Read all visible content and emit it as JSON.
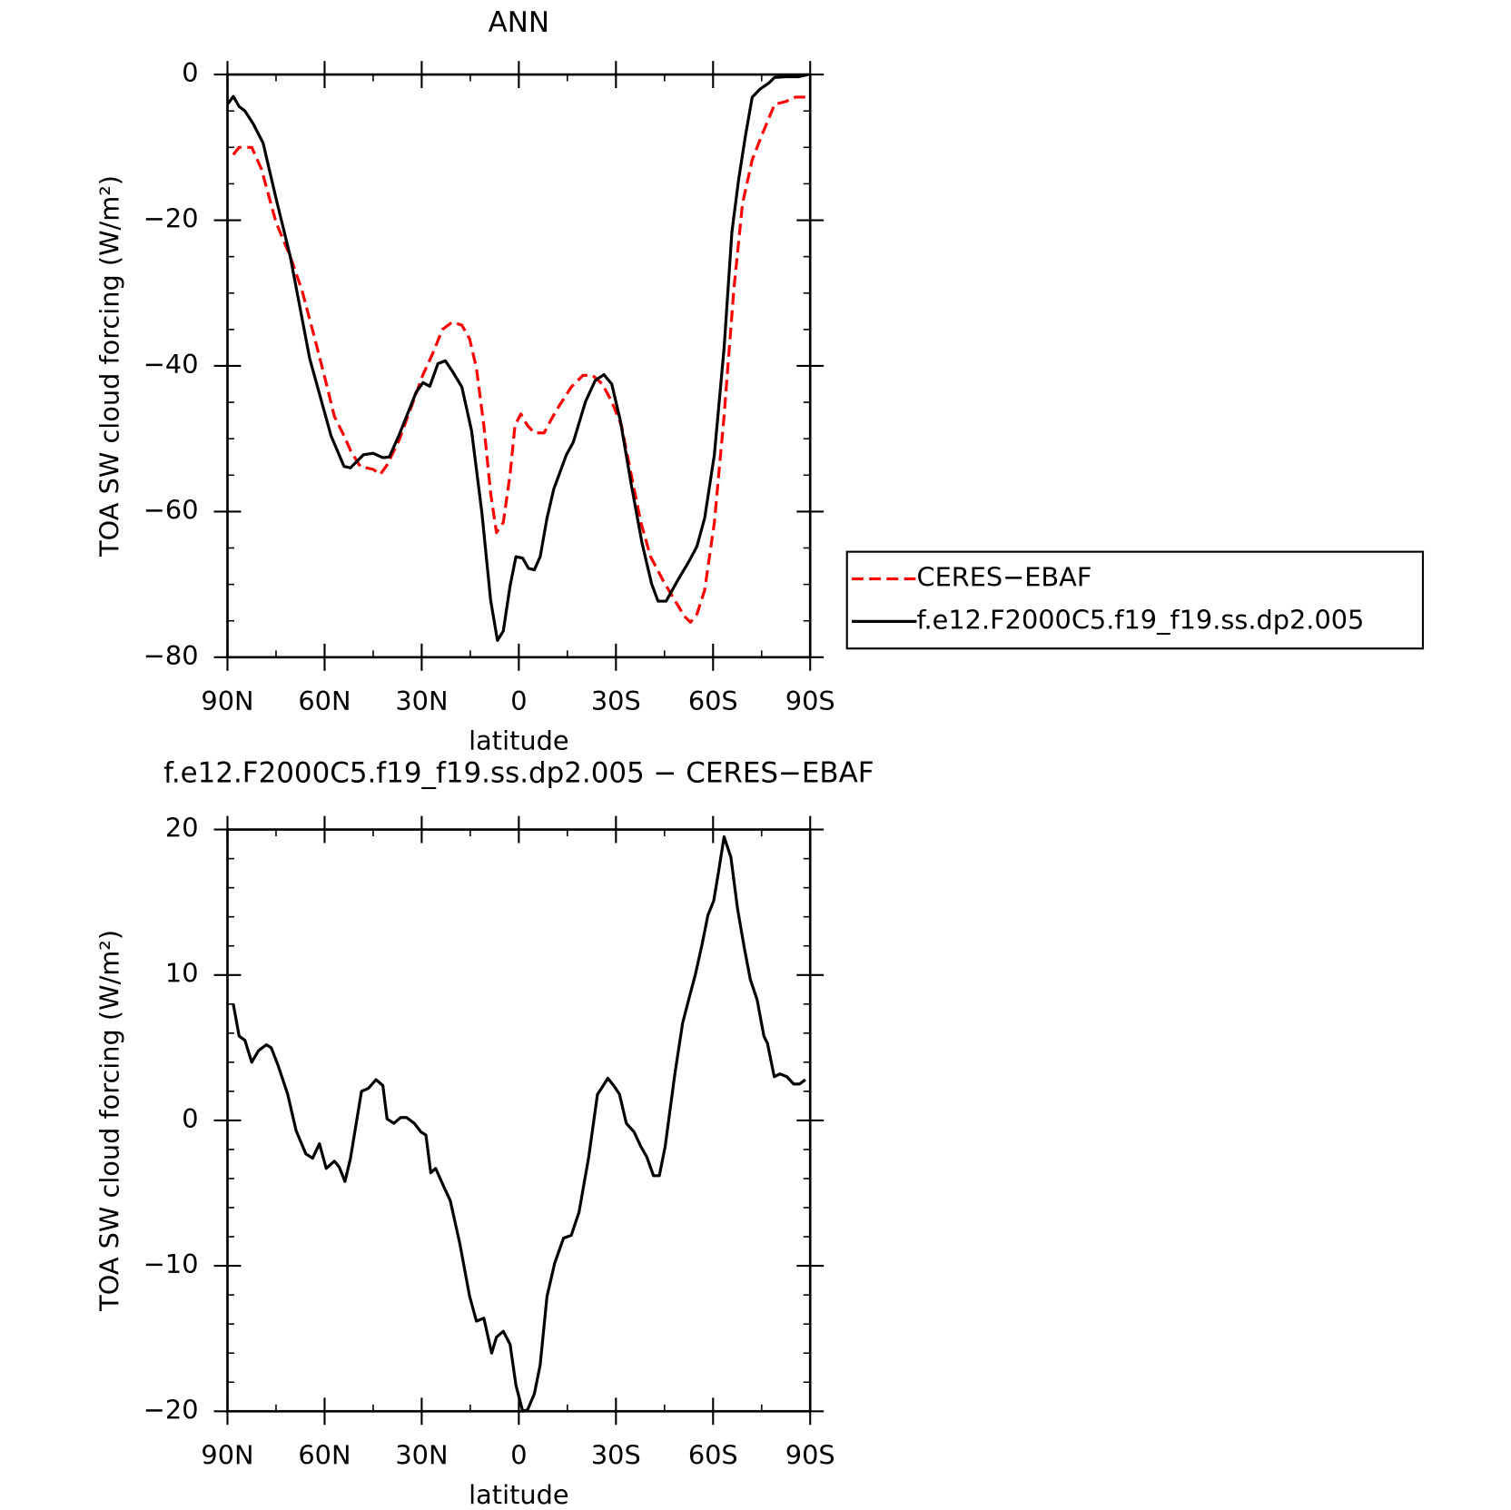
{
  "chart_data": [
    {
      "type": "line",
      "title": "ANN",
      "xlabel": "latitude",
      "ylabel": "TOA SW cloud forcing (W/m²)",
      "xlim": [
        90,
        -90
      ],
      "xticks": [
        {
          "value": 90,
          "label": "90N"
        },
        {
          "value": 60,
          "label": "60N"
        },
        {
          "value": 30,
          "label": "30N"
        },
        0,
        {
          "value": -30,
          "label": "30S"
        },
        {
          "value": -60,
          "label": "60S"
        },
        {
          "value": -90,
          "label": "90S"
        }
      ],
      "xminorticks": [
        75,
        45,
        15,
        -15,
        -45,
        -75
      ],
      "ylim": [
        -80,
        0
      ],
      "yticks": [
        0,
        {
          "value": -20,
          "label": "−20"
        },
        {
          "value": -40,
          "label": "−40"
        },
        {
          "value": -60,
          "label": "−60"
        },
        {
          "value": -80,
          "label": "−80"
        }
      ],
      "yminorticks": [
        -5,
        -10,
        -15,
        -25,
        -30,
        -35,
        -45,
        -50,
        -55,
        -65,
        -70,
        -75
      ],
      "legend": "right",
      "series": [
        {
          "name": "CERES−EBAF",
          "color": "#ff0000",
          "dash": true,
          "x": [
            88.2,
            86.4,
            82.5,
            79.5,
            75,
            70.6,
            67,
            63,
            59.2,
            57,
            54,
            52,
            49,
            45,
            42.8,
            40.7,
            37,
            33.2,
            29.6,
            26.6,
            23.6,
            20.6,
            17.6,
            15.2,
            13.1,
            10.8,
            8.7,
            6.9,
            4.8,
            2.7,
            1.2,
            -0.6,
            -2.7,
            -4.8,
            -7.8,
            -10.2,
            -12.3,
            -16.2,
            -19.8,
            -22.8,
            -25.8,
            -28.7,
            -31.7,
            -34.7,
            -37.7,
            -40.7,
            -44.6,
            -48.2,
            -51.2,
            -53,
            -55,
            -57.4,
            -60.4,
            -63.4,
            -66.4,
            -69.1,
            -72.1,
            -75,
            -79,
            -82.5,
            -85.5,
            -88.5
          ],
          "values": [
            -11,
            -10,
            -10,
            -13,
            -20.3,
            -25,
            -29.6,
            -36.3,
            -42.9,
            -46.9,
            -49.6,
            -51.6,
            -53.8,
            -54.2,
            -54.9,
            -53.6,
            -50.2,
            -45.6,
            -41.2,
            -38.3,
            -35,
            -34,
            -34.4,
            -36.3,
            -40.3,
            -48.2,
            -57.5,
            -62.9,
            -61.5,
            -54.9,
            -48.2,
            -46.6,
            -48.2,
            -49.2,
            -49.2,
            -47.2,
            -45.6,
            -42.9,
            -41.3,
            -41.3,
            -42.5,
            -44.9,
            -48.2,
            -54.9,
            -61.5,
            -66.2,
            -69.5,
            -72.2,
            -74.4,
            -75.2,
            -74.1,
            -70.8,
            -61.5,
            -46.9,
            -29.6,
            -17.7,
            -11.7,
            -8.4,
            -4.1,
            -3.7,
            -3.1,
            -3.1
          ]
        },
        {
          "name": "f.e12.F2000C5.f19_f19.ss.dp2.005",
          "color": "#000000",
          "dash": false,
          "x": [
            90,
            88.2,
            86.4,
            84.6,
            82,
            79,
            75,
            70.6,
            64.6,
            58,
            54,
            52,
            48,
            45,
            42,
            40,
            37,
            31.7,
            29.6,
            27.5,
            25,
            22.7,
            20.3,
            17.6,
            14.6,
            11.4,
            8.7,
            6.6,
            4.8,
            2.7,
            0.9,
            -1.2,
            -3,
            -4.8,
            -6.6,
            -8.7,
            -10.8,
            -14.7,
            -16.8,
            -20.6,
            -23.6,
            -26.3,
            -28.7,
            -31.4,
            -34.7,
            -38,
            -41,
            -43,
            -45.5,
            -49,
            -52.6,
            -55,
            -57.4,
            -60.4,
            -63.4,
            -65.8,
            -67.9,
            -70,
            -72.1,
            -74.5,
            -77.4,
            -79,
            -82.5,
            -86.4,
            -89.4
          ],
          "values": [
            -4.1,
            -3,
            -4.4,
            -5,
            -6.8,
            -9.4,
            -17,
            -25,
            -39,
            -49.6,
            -53.8,
            -54,
            -52.2,
            -52,
            -52.6,
            -52.5,
            -49.5,
            -43.6,
            -42.3,
            -42.8,
            -39.7,
            -39.3,
            -40.9,
            -42.9,
            -48.9,
            -60.2,
            -72.2,
            -77.7,
            -76.4,
            -70.2,
            -66.2,
            -66.4,
            -67.8,
            -68,
            -66.2,
            -60.9,
            -56.9,
            -52.2,
            -50.5,
            -44.9,
            -42,
            -41.2,
            -42.5,
            -47.6,
            -56.2,
            -64.2,
            -69.9,
            -72.3,
            -72.3,
            -69.5,
            -66.8,
            -64.8,
            -60.9,
            -52.2,
            -37.6,
            -21.7,
            -14.4,
            -8.4,
            -3.1,
            -2,
            -1.1,
            -0.4,
            -0.3,
            -0.3,
            0
          ]
        }
      ]
    },
    {
      "type": "line",
      "title": "f.e12.F2000C5.f19_f19.ss.dp2.005 − CERES−EBAF",
      "xlabel": "latitude",
      "ylabel": "TOA SW cloud forcing (W/m²)",
      "xlim": [
        90,
        -90
      ],
      "xticks": [
        {
          "value": 90,
          "label": "90N"
        },
        {
          "value": 60,
          "label": "60N"
        },
        {
          "value": 30,
          "label": "30N"
        },
        0,
        {
          "value": -30,
          "label": "30S"
        },
        {
          "value": -60,
          "label": "60S"
        },
        {
          "value": -90,
          "label": "90S"
        }
      ],
      "xminorticks": [
        75,
        45,
        15,
        -15,
        -45,
        -75
      ],
      "ylim": [
        -20,
        20
      ],
      "yticks": [
        20,
        10,
        0,
        {
          "value": -10,
          "label": "−10"
        },
        {
          "value": -20,
          "label": "−20"
        }
      ],
      "yminorticks": [
        18,
        16,
        14,
        12,
        8,
        6,
        4,
        2,
        -2,
        -4,
        -6,
        -8,
        -12,
        -14,
        -16,
        -18
      ],
      "series": [
        {
          "color": "#000000",
          "dash": false,
          "x": [
            88.2,
            86.4,
            84.6,
            82.5,
            80.4,
            78,
            76.5,
            74.4,
            71.4,
            68.8,
            65.8,
            63.7,
            61.6,
            59.5,
            57,
            55.5,
            53.7,
            52,
            48.6,
            46.5,
            44.1,
            42,
            40.7,
            38.6,
            36.5,
            34.7,
            32.3,
            30.2,
            28.7,
            27.2,
            25.7,
            23.3,
            21.2,
            18.2,
            15.2,
            13.1,
            10.8,
            8.4,
            6.9,
            4.8,
            2.7,
            0.9,
            -1.2,
            -2.7,
            -4.8,
            -6.6,
            -8.7,
            -11.1,
            -13.8,
            -16.2,
            -18.6,
            -21.6,
            -24.3,
            -25.8,
            -27.5,
            -29.3,
            -31.1,
            -33.2,
            -35.6,
            -37.7,
            -39.5,
            -41.6,
            -43.4,
            -45.2,
            -48.2,
            -50.6,
            -52.7,
            -54.5,
            -56.6,
            -58.4,
            -60.2,
            -61.7,
            -63.4,
            -65.5,
            -67.6,
            -69.7,
            -71.5,
            -73.6,
            -75.7,
            -76.8,
            -78.9,
            -80.7,
            -82.8,
            -84.9,
            -86.7,
            -88.5
          ],
          "values": [
            8.0,
            5.8,
            5.5,
            4.0,
            4.8,
            5.2,
            5.0,
            3.8,
            1.8,
            -0.7,
            -2.3,
            -2.6,
            -1.6,
            -3.3,
            -2.8,
            -3.2,
            -4.2,
            -2.6,
            2.0,
            2.2,
            2.8,
            2.4,
            0.1,
            -0.2,
            0.2,
            0.2,
            -0.2,
            -0.8,
            -1.0,
            -3.6,
            -3.3,
            -4.5,
            -5.5,
            -8.5,
            -12.1,
            -13.8,
            -13.6,
            -16.0,
            -14.9,
            -14.5,
            -15.4,
            -18.2,
            -20,
            -19.9,
            -18.8,
            -16.8,
            -12.1,
            -9.8,
            -8.1,
            -7.9,
            -6.3,
            -2.5,
            1.8,
            2.3,
            2.9,
            2.4,
            1.8,
            -0.2,
            -0.8,
            -1.8,
            -2.5,
            -3.8,
            -3.8,
            -1.8,
            3.2,
            6.7,
            8.5,
            10.0,
            12.1,
            14.1,
            15.1,
            17.1,
            19.5,
            18.1,
            14.5,
            11.8,
            9.7,
            8.3,
            5.8,
            5.3,
            3.0,
            3.2,
            3.0,
            2.5,
            2.5,
            2.8
          ]
        }
      ]
    }
  ]
}
